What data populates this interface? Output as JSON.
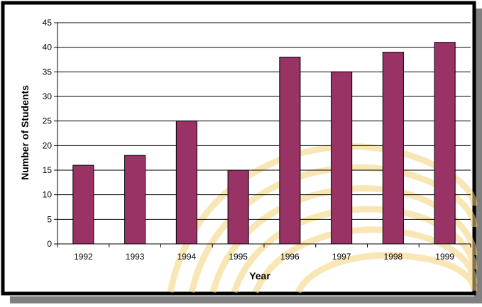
{
  "colors": {
    "bar": "#993366",
    "bar_stroke": "#000000",
    "frame": "#000000",
    "shadow": "#808080",
    "watermark": "#f3d27a"
  },
  "chart_data": {
    "type": "bar",
    "title": "",
    "xlabel": "Year",
    "ylabel": "Number of Students",
    "categories": [
      "1992",
      "1993",
      "1994",
      "1995",
      "1996",
      "1997",
      "1998",
      "1999"
    ],
    "values": [
      16,
      18,
      25,
      15,
      38,
      35,
      39,
      41
    ],
    "ylim": [
      0,
      45
    ],
    "yticks": [
      0,
      5,
      10,
      15,
      20,
      25,
      30,
      35,
      40,
      45
    ],
    "ytick_labels": [
      "0",
      "5",
      "10",
      "15",
      "20",
      "25",
      "30",
      "35",
      "40",
      "45"
    ],
    "grid": true,
    "legend": "none"
  }
}
